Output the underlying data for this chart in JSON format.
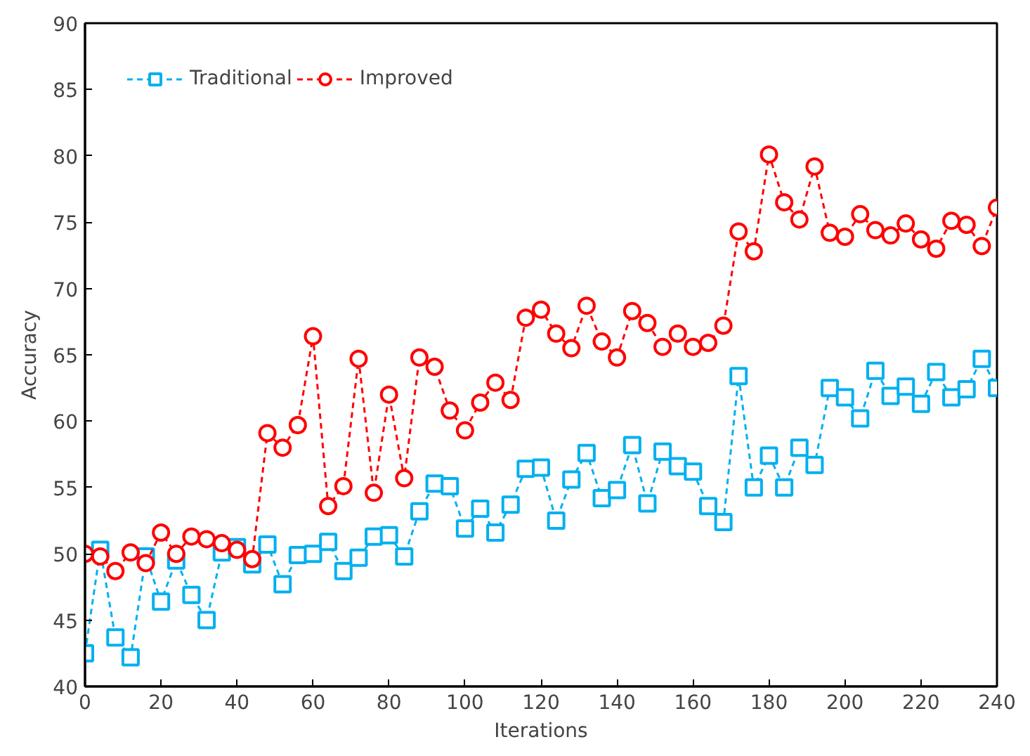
{
  "chart_data": {
    "type": "line",
    "xlabel": "Iterations",
    "ylabel": "Accuracy",
    "x": [
      0,
      4,
      8,
      12,
      16,
      20,
      24,
      28,
      32,
      36,
      40,
      44,
      48,
      52,
      56,
      60,
      64,
      68,
      72,
      76,
      80,
      84,
      88,
      92,
      96,
      100,
      104,
      108,
      112,
      116,
      120,
      124,
      128,
      132,
      136,
      140,
      144,
      148,
      152,
      156,
      160,
      164,
      168,
      172,
      176,
      180,
      184,
      188,
      192,
      196,
      200,
      204,
      208,
      212,
      216,
      220,
      224,
      228,
      232,
      236,
      240
    ],
    "series": [
      {
        "name": "Traditional",
        "color": "#00b0f0",
        "marker": "square",
        "values": [
          42.5,
          50.3,
          43.7,
          42.2,
          49.8,
          46.4,
          49.5,
          46.9,
          45.0,
          50.1,
          50.5,
          49.2,
          50.7,
          47.7,
          49.9,
          50.0,
          50.9,
          48.7,
          49.7,
          51.3,
          51.4,
          49.8,
          53.2,
          55.3,
          55.1,
          51.9,
          53.4,
          51.6,
          53.7,
          56.4,
          56.5,
          52.5,
          55.6,
          57.6,
          54.2,
          54.8,
          58.2,
          53.8,
          57.7,
          56.6,
          56.2,
          53.6,
          52.4,
          63.4,
          55.0,
          57.4,
          55.0,
          58.0,
          56.7,
          62.5,
          61.8,
          60.2,
          63.8,
          61.9,
          62.6,
          61.3,
          63.7,
          61.8,
          62.4,
          64.7,
          62.5
        ]
      },
      {
        "name": "Improved",
        "color": "#ff0000",
        "marker": "circle",
        "values": [
          50.0,
          49.8,
          48.7,
          50.1,
          49.3,
          51.6,
          50.0,
          51.3,
          51.1,
          50.8,
          50.3,
          49.6,
          59.1,
          58.0,
          59.7,
          66.4,
          53.6,
          55.1,
          64.7,
          54.6,
          62.0,
          55.7,
          64.8,
          64.1,
          60.8,
          59.3,
          61.4,
          62.9,
          61.6,
          67.8,
          68.4,
          66.6,
          65.5,
          68.7,
          66.0,
          64.8,
          68.3,
          67.4,
          65.6,
          66.6,
          65.6,
          65.9,
          67.2,
          74.3,
          72.8,
          80.1,
          76.5,
          75.2,
          79.2,
          74.2,
          73.9,
          75.6,
          74.4,
          74.0,
          74.9,
          73.7,
          73.0,
          75.1,
          74.8,
          73.2,
          76.1
        ]
      }
    ],
    "xlim": [
      0,
      240
    ],
    "xticks": [
      0,
      20,
      40,
      60,
      80,
      100,
      120,
      140,
      160,
      180,
      200,
      220,
      240
    ],
    "ylim": [
      40,
      90
    ],
    "yticks": [
      40,
      45,
      50,
      55,
      60,
      65,
      70,
      75,
      80,
      85,
      90
    ],
    "grid": false,
    "legend": "top left",
    "line_style": "dashed"
  }
}
